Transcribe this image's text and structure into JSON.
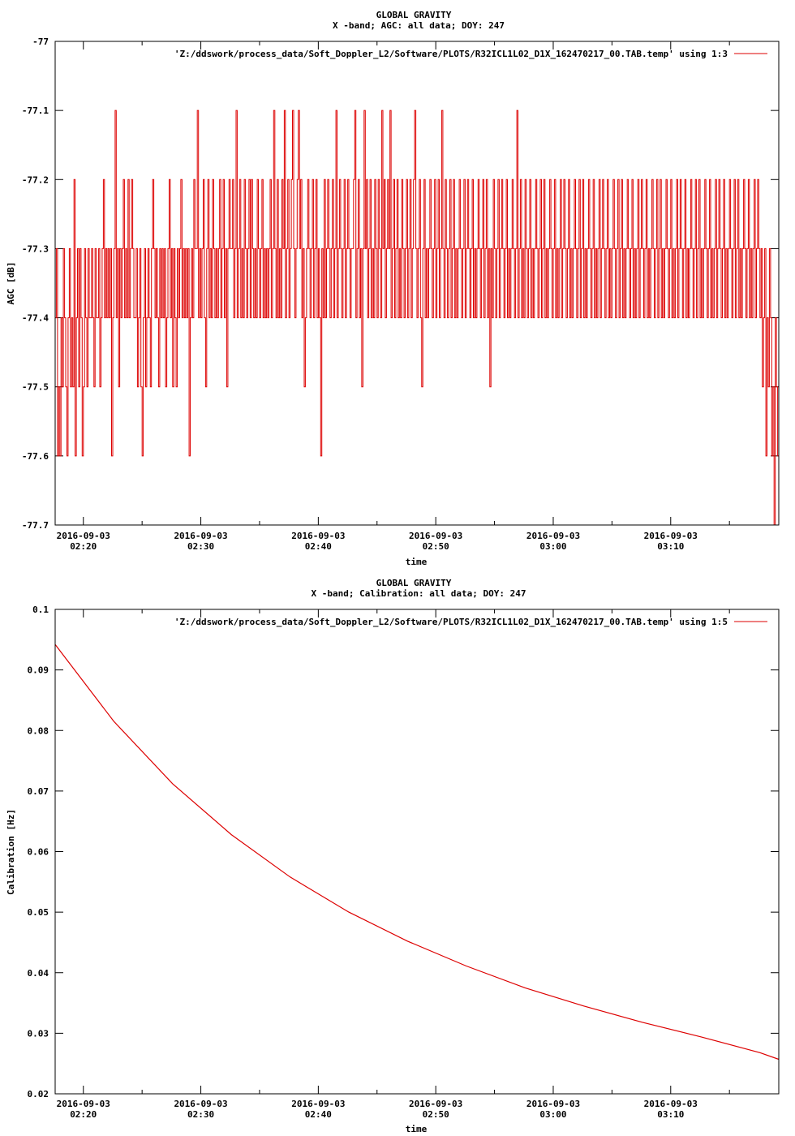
{
  "colors": {
    "series": "#dd0000",
    "axes": "#000000",
    "background": "#ffffff"
  },
  "chart_data": [
    {
      "type": "line",
      "title_line1": "GLOBAL GRAVITY",
      "title_line2": "X -band; AGC: all data; DOY: 247",
      "xlabel": "time",
      "ylabel": "AGC [dB]",
      "x_range": [
        "2016-09-03 02:17:36",
        "2016-09-03 03:19:12"
      ],
      "xlim_minutes": [
        0,
        61.6
      ],
      "x_tick_minutes": [
        2.4,
        12.4,
        22.4,
        32.4,
        42.4,
        52.4
      ],
      "x_tick_labels": [
        [
          "2016-09-03",
          "02:20"
        ],
        [
          "2016-09-03",
          "02:30"
        ],
        [
          "2016-09-03",
          "02:40"
        ],
        [
          "2016-09-03",
          "02:50"
        ],
        [
          "2016-09-03",
          "03:00"
        ],
        [
          "2016-09-03",
          "03:10"
        ]
      ],
      "ylim": [
        -77.7,
        -77
      ],
      "y_ticks": [
        -77,
        -77.1,
        -77.2,
        -77.3,
        -77.4,
        -77.5,
        -77.6,
        -77.7
      ],
      "y_tick_labels": [
        "-77",
        "-77.1",
        "-77.2",
        "-77.3",
        "-77.4",
        "-77.5",
        "-77.6",
        "-77.7"
      ],
      "legend": "top-right",
      "series": [
        {
          "name": "'Z:/ddswork/process_data/Soft_Doppler_L2/Software/PLOTS/R32ICL1L02_D1X_162470217_00.TAB.temp' using 1:3",
          "x_step_minutes": 0.1,
          "values": [
            -77.4,
            -77.3,
            -77.6,
            -77.5,
            -77.6,
            -77.4,
            -77.5,
            -77.3,
            -77.4,
            -77.5,
            -77.6,
            -77.4,
            -77.3,
            -77.5,
            -77.4,
            -77.5,
            -77.2,
            -77.6,
            -77.4,
            -77.3,
            -77.5,
            -77.3,
            -77.4,
            -77.6,
            -77.5,
            -77.3,
            -77.4,
            -77.5,
            -77.3,
            -77.4,
            -77.4,
            -77.3,
            -77.4,
            -77.5,
            -77.3,
            -77.4,
            -77.4,
            -77.3,
            -77.5,
            -77.4,
            -77.3,
            -77.2,
            -77.4,
            -77.3,
            -77.4,
            -77.3,
            -77.4,
            -77.3,
            -77.6,
            -77.4,
            -77.3,
            -77.1,
            -77.4,
            -77.3,
            -77.5,
            -77.3,
            -77.4,
            -77.3,
            -77.2,
            -77.4,
            -77.3,
            -77.4,
            -77.2,
            -77.4,
            -77.3,
            -77.2,
            -77.3,
            -77.4,
            -77.4,
            -77.3,
            -77.5,
            -77.4,
            -77.3,
            -77.5,
            -77.6,
            -77.4,
            -77.3,
            -77.5,
            -77.4,
            -77.3,
            -77.4,
            -77.5,
            -77.3,
            -77.2,
            -77.3,
            -77.4,
            -77.3,
            -77.4,
            -77.5,
            -77.3,
            -77.4,
            -77.3,
            -77.4,
            -77.3,
            -77.5,
            -77.4,
            -77.3,
            -77.2,
            -77.4,
            -77.3,
            -77.5,
            -77.3,
            -77.4,
            -77.5,
            -77.3,
            -77.4,
            -77.3,
            -77.2,
            -77.4,
            -77.3,
            -77.4,
            -77.3,
            -77.4,
            -77.3,
            -77.6,
            -77.4,
            -77.3,
            -77.4,
            -77.2,
            -77.3,
            -77.3,
            -77.1,
            -77.4,
            -77.3,
            -77.4,
            -77.3,
            -77.2,
            -77.4,
            -77.5,
            -77.3,
            -77.2,
            -77.4,
            -77.3,
            -77.4,
            -77.2,
            -77.3,
            -77.4,
            -77.3,
            -77.4,
            -77.3,
            -77.2,
            -77.4,
            -77.3,
            -77.2,
            -77.4,
            -77.3,
            -77.5,
            -77.3,
            -77.2,
            -77.3,
            -77.3,
            -77.2,
            -77.4,
            -77.3,
            -77.1,
            -77.4,
            -77.3,
            -77.2,
            -77.4,
            -77.3,
            -77.4,
            -77.2,
            -77.3,
            -77.4,
            -77.3,
            -77.2,
            -77.4,
            -77.2,
            -77.3,
            -77.4,
            -77.3,
            -77.4,
            -77.2,
            -77.3,
            -77.4,
            -77.3,
            -77.2,
            -77.4,
            -77.3,
            -77.4,
            -77.3,
            -77.4,
            -77.3,
            -77.2,
            -77.4,
            -77.3,
            -77.1,
            -77.3,
            -77.4,
            -77.2,
            -77.4,
            -77.3,
            -77.4,
            -77.2,
            -77.3,
            -77.1,
            -77.4,
            -77.3,
            -77.2,
            -77.4,
            -77.3,
            -77.2,
            -77.1,
            -77.3,
            -77.4,
            -77.3,
            -77.2,
            -77.1,
            -77.3,
            -77.2,
            -77.4,
            -77.3,
            -77.5,
            -77.4,
            -77.3,
            -77.2,
            -77.3,
            -77.4,
            -77.3,
            -77.2,
            -77.4,
            -77.3,
            -77.2,
            -77.4,
            -77.3,
            -77.4,
            -77.6,
            -77.3,
            -77.4,
            -77.2,
            -77.4,
            -77.3,
            -77.2,
            -77.3,
            -77.4,
            -77.3,
            -77.2,
            -77.4,
            -77.3,
            -77.1,
            -77.4,
            -77.3,
            -77.2,
            -77.3,
            -77.4,
            -77.3,
            -77.2,
            -77.4,
            -77.3,
            -77.2,
            -77.3,
            -77.4,
            -77.3,
            -77.3,
            -77.2,
            -77.1,
            -77.4,
            -77.3,
            -77.2,
            -77.4,
            -77.3,
            -77.5,
            -77.3,
            -77.1,
            -77.3,
            -77.2,
            -77.4,
            -77.3,
            -77.2,
            -77.4,
            -77.3,
            -77.4,
            -77.2,
            -77.3,
            -77.4,
            -77.2,
            -77.3,
            -77.4,
            -77.1,
            -77.3,
            -77.2,
            -77.4,
            -77.3,
            -77.2,
            -77.3,
            -77.1,
            -77.4,
            -77.3,
            -77.2,
            -77.4,
            -77.3,
            -77.2,
            -77.4,
            -77.3,
            -77.4,
            -77.2,
            -77.3,
            -77.4,
            -77.3,
            -77.2,
            -77.4,
            -77.3,
            -77.2,
            -77.4,
            -77.3,
            -77.2,
            -77.1,
            -77.3,
            -77.4,
            -77.3,
            -77.2,
            -77.4,
            -77.5,
            -77.3,
            -77.2,
            -77.4,
            -77.3,
            -77.4,
            -77.3,
            -77.2,
            -77.3,
            -77.4,
            -77.3,
            -77.2,
            -77.4,
            -77.3,
            -77.2,
            -77.4,
            -77.3,
            -77.1,
            -77.3,
            -77.4,
            -77.2,
            -77.3,
            -77.4,
            -77.3,
            -77.2,
            -77.4,
            -77.3,
            -77.2,
            -77.4,
            -77.3,
            -77.4,
            -77.3,
            -77.2,
            -77.3,
            -77.4,
            -77.3,
            -77.2,
            -77.4,
            -77.3,
            -77.2,
            -77.3,
            -77.4,
            -77.3,
            -77.2,
            -77.4,
            -77.3,
            -77.4,
            -77.3,
            -77.2,
            -77.3,
            -77.4,
            -77.3,
            -77.2,
            -77.4,
            -77.3,
            -77.2,
            -77.4,
            -77.3,
            -77.5,
            -77.3,
            -77.4,
            -77.2,
            -77.3,
            -77.4,
            -77.3,
            -77.2,
            -77.4,
            -77.3,
            -77.2,
            -77.3,
            -77.4,
            -77.3,
            -77.2,
            -77.4,
            -77.3,
            -77.4,
            -77.3,
            -77.2,
            -77.3,
            -77.4,
            -77.3,
            -77.1,
            -77.4,
            -77.3,
            -77.2,
            -77.4,
            -77.3,
            -77.4,
            -77.2,
            -77.3,
            -77.4,
            -77.3,
            -77.2,
            -77.4,
            -77.3,
            -77.4,
            -77.3,
            -77.2,
            -77.3,
            -77.4,
            -77.3,
            -77.2,
            -77.4,
            -77.3,
            -77.2,
            -77.4,
            -77.3,
            -77.4,
            -77.3,
            -77.2,
            -77.3,
            -77.4,
            -77.3,
            -77.2,
            -77.4,
            -77.3,
            -77.4,
            -77.3,
            -77.2,
            -77.4,
            -77.3,
            -77.2,
            -77.3,
            -77.4,
            -77.3,
            -77.2,
            -77.4,
            -77.3,
            -77.4,
            -77.3,
            -77.2,
            -77.3,
            -77.4,
            -77.3,
            -77.2,
            -77.4,
            -77.3,
            -77.2,
            -77.4,
            -77.3,
            -77.4,
            -77.3,
            -77.2,
            -77.3,
            -77.4,
            -77.3,
            -77.2,
            -77.4,
            -77.3,
            -77.4,
            -77.3,
            -77.2,
            -77.4,
            -77.3,
            -77.2,
            -77.3,
            -77.4,
            -77.3,
            -77.2,
            -77.4,
            -77.3,
            -77.4,
            -77.3,
            -77.2,
            -77.3,
            -77.4,
            -77.3,
            -77.2,
            -77.4,
            -77.3,
            -77.2,
            -77.4,
            -77.3,
            -77.4,
            -77.3,
            -77.2,
            -77.3,
            -77.4,
            -77.3,
            -77.2,
            -77.4,
            -77.3,
            -77.4,
            -77.3,
            -77.2,
            -77.4,
            -77.3,
            -77.2,
            -77.3,
            -77.4,
            -77.3,
            -77.2,
            -77.4,
            -77.3,
            -77.4,
            -77.3,
            -77.2,
            -77.3,
            -77.4,
            -77.3,
            -77.2,
            -77.4,
            -77.3,
            -77.2,
            -77.4,
            -77.3,
            -77.4,
            -77.3,
            -77.2,
            -77.3,
            -77.4,
            -77.3,
            -77.2,
            -77.4,
            -77.3,
            -77.4,
            -77.3,
            -77.2,
            -77.4,
            -77.3,
            -77.2,
            -77.3,
            -77.4,
            -77.3,
            -77.2,
            -77.4,
            -77.3,
            -77.4,
            -77.3,
            -77.2,
            -77.3,
            -77.4,
            -77.3,
            -77.2,
            -77.4,
            -77.3,
            -77.2,
            -77.4,
            -77.3,
            -77.4,
            -77.3,
            -77.2,
            -77.3,
            -77.4,
            -77.3,
            -77.2,
            -77.4,
            -77.3,
            -77.4,
            -77.3,
            -77.2,
            -77.4,
            -77.3,
            -77.2,
            -77.3,
            -77.4,
            -77.3,
            -77.2,
            -77.4,
            -77.3,
            -77.4,
            -77.3,
            -77.2,
            -77.3,
            -77.4,
            -77.3,
            -77.2,
            -77.4,
            -77.3,
            -77.2,
            -77.4,
            -77.3,
            -77.4,
            -77.3,
            -77.2,
            -77.3,
            -77.4,
            -77.3,
            -77.2,
            -77.4,
            -77.3,
            -77.4,
            -77.3,
            -77.2,
            -77.4,
            -77.3,
            -77.2,
            -77.3,
            -77.4,
            -77.3,
            -77.5,
            -77.4,
            -77.3,
            -77.6,
            -77.4,
            -77.5,
            -77.3,
            -77.4,
            -77.6,
            -77.5,
            -77.7,
            -77.4,
            -77.5,
            -77.6,
            -77.4,
            -77.3,
            -77.5,
            -77.6,
            -77.7,
            -77.4,
            -77.5,
            -77.6,
            -77.3,
            -77.7
          ]
        }
      ]
    },
    {
      "type": "line",
      "title_line1": "GLOBAL GRAVITY",
      "title_line2": "X -band; Calibration: all data; DOY: 247",
      "xlabel": "time",
      "ylabel": "Calibration [Hz]",
      "x_range": [
        "2016-09-03 02:17:36",
        "2016-09-03 03:19:12"
      ],
      "xlim_minutes": [
        0,
        61.6
      ],
      "x_tick_minutes": [
        2.4,
        12.4,
        22.4,
        32.4,
        42.4,
        52.4
      ],
      "x_tick_labels": [
        [
          "2016-09-03",
          "02:20"
        ],
        [
          "2016-09-03",
          "02:30"
        ],
        [
          "2016-09-03",
          "02:40"
        ],
        [
          "2016-09-03",
          "02:50"
        ],
        [
          "2016-09-03",
          "03:00"
        ],
        [
          "2016-09-03",
          "03:10"
        ]
      ],
      "ylim": [
        0.02,
        0.1
      ],
      "y_ticks": [
        0.1,
        0.09,
        0.08,
        0.07,
        0.06,
        0.05,
        0.04,
        0.03,
        0.02
      ],
      "y_tick_labels": [
        "0.1",
        "0.09",
        "0.08",
        "0.07",
        "0.06",
        "0.05",
        "0.04",
        "0.03",
        "0.02"
      ],
      "legend": "top-right",
      "series": [
        {
          "name": "'Z:/ddswork/process_data/Soft_Doppler_L2/Software/PLOTS/R32ICL1L02_D1X_162470217_00.TAB.temp' using 1:5",
          "x_minutes": [
            0,
            5,
            10,
            15,
            20,
            25,
            30,
            35,
            40,
            45,
            50,
            55,
            60,
            61.6
          ],
          "values": [
            0.0942,
            0.0815,
            0.0712,
            0.0628,
            0.0558,
            0.05,
            0.0452,
            0.0411,
            0.0375,
            0.0345,
            0.0318,
            0.0294,
            0.0268,
            0.0257
          ]
        }
      ]
    }
  ]
}
